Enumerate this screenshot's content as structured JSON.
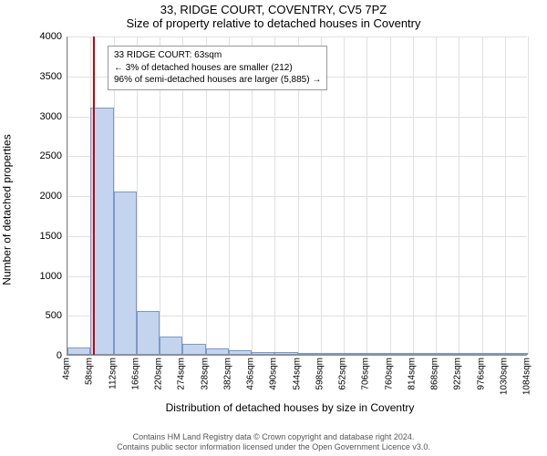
{
  "title_top": "33, RIDGE COURT, COVENTRY, CV5 7PZ",
  "title_sub": "Size of property relative to detached houses in Coventry",
  "chart": {
    "type": "histogram",
    "ylabel": "Number of detached properties",
    "xlabel": "Distribution of detached houses by size in Coventry",
    "ylim": [
      0,
      4000
    ],
    "ytick_step": 500,
    "xticks": [
      "4sqm",
      "58sqm",
      "112sqm",
      "166sqm",
      "220sqm",
      "274sqm",
      "328sqm",
      "382sqm",
      "436sqm",
      "490sqm",
      "544sqm",
      "598sqm",
      "652sqm",
      "706sqm",
      "760sqm",
      "814sqm",
      "868sqm",
      "922sqm",
      "976sqm",
      "1030sqm",
      "1084sqm"
    ],
    "xstep": 54,
    "values": [
      90,
      3100,
      2050,
      550,
      230,
      140,
      80,
      60,
      40,
      30,
      20,
      20,
      10,
      10,
      10,
      5,
      5,
      5,
      5,
      5
    ],
    "bar_fill": "#c4d4ee",
    "bar_stroke": "#7a99c9",
    "grid_color": "#e0e0e0",
    "background": "#ffffff",
    "marker_x": 63,
    "marker_color": "#d00000",
    "annotation": {
      "lines": [
        "33 RIDGE COURT: 63sqm",
        "← 3% of detached houses are smaller (212)",
        "96% of semi-detached houses are larger (5,885) →"
      ]
    }
  },
  "copyright_1": "Contains HM Land Registry data © Crown copyright and database right 2024.",
  "copyright_2": "Contains public sector information licensed under the Open Government Licence v3.0."
}
